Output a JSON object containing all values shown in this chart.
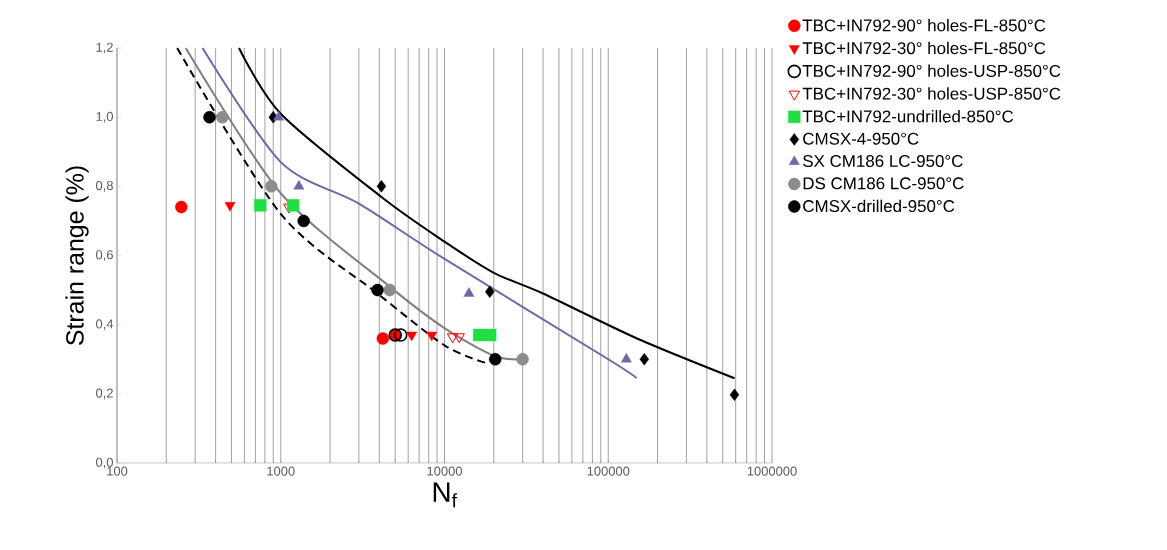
{
  "chart_data": {
    "type": "scatter",
    "xlabel": "N$_{f}$",
    "ylabel": "Strain range (%)",
    "log": "x",
    "grid": "x",
    "legend": "right",
    "xlim": [
      100,
      1000000
    ],
    "xticks": [
      100,
      1000,
      10000,
      100000,
      1000000
    ],
    "ylim": [
      0,
      1.2
    ],
    "yticks": [
      {
        "value": 0,
        "label": "0,0"
      },
      {
        "value": 0.2,
        "label": "0,2"
      },
      {
        "value": 0.4,
        "label": "0,4"
      },
      {
        "value": 0.6,
        "label": "0,6"
      },
      {
        "value": 0.8,
        "label": "0,8"
      },
      {
        "value": 1.0,
        "label": "1,0"
      },
      {
        "value": 1.2,
        "label": "1,2"
      }
    ],
    "series": [
      {
        "type": "line",
        "color": "#000000",
        "line_style": "solid",
        "x": [
          556,
          1000,
          4100,
          10000,
          20000,
          40000,
          150000,
          590000
        ],
        "values": [
          1.2,
          1.01,
          0.77,
          0.64,
          0.55,
          0.49,
          0.36,
          0.245
        ]
      },
      {
        "type": "line",
        "color": "#6a6aa6",
        "line_style": "solid",
        "x": [
          333,
          1000,
          3000,
          10000,
          100000,
          149000
        ],
        "values": [
          1.2,
          0.87,
          0.75,
          0.59,
          0.3,
          0.245
        ]
      },
      {
        "type": "line",
        "color": "#808080",
        "line_style": "solid",
        "x": [
          263,
          1000,
          4630,
          10000,
          20000,
          30000
        ],
        "values": [
          1.2,
          0.78,
          0.51,
          0.39,
          0.31,
          0.3
        ]
      },
      {
        "type": "line",
        "color": "#000000",
        "line_style": "dashed",
        "x": [
          233,
          1000,
          3900,
          10000,
          17700
        ],
        "values": [
          1.2,
          0.72,
          0.49,
          0.34,
          0.29
        ]
      },
      {
        "name": "TBC+IN792-90° holes-FL-850°C",
        "color": "#ff0000",
        "marker": "circle",
        "x": [
          247,
          4200,
          5000
        ],
        "values": [
          0.74,
          0.36,
          0.37
        ]
      },
      {
        "name": "TBC+IN792-30° holes-FL-850°C",
        "color": "#ff0000",
        "marker": "triangle-down",
        "x": [
          490,
          6300,
          8350
        ],
        "values": [
          0.745,
          0.37,
          0.37
        ]
      },
      {
        "name": "TBC+IN792-90° holes-USP-850°C",
        "color": "#000000",
        "marker": "circle-open",
        "x": [
          5000,
          5400
        ],
        "values": [
          0.37,
          0.37
        ]
      },
      {
        "name": "TBC+IN792-30° holes-USP-850°C",
        "color": "#ff0000",
        "marker": "triangle-down-open",
        "x": [
          1120,
          11200,
          12300
        ],
        "values": [
          0.74,
          0.365,
          0.365
        ]
      },
      {
        "name": "TBC+IN792-undrilled-850°C",
        "color": "#22dd44",
        "marker": "square",
        "x": [
          750,
          1190,
          16300,
          19000
        ],
        "values": [
          0.745,
          0.745,
          0.37,
          0.37
        ]
      },
      {
        "name": "CMSX-4-950°C",
        "color": "#000000",
        "marker": "diamond",
        "x": [
          900,
          4120,
          18900,
          166000,
          590000
        ],
        "values": [
          1.0,
          0.8,
          0.495,
          0.3,
          0.197
        ]
      },
      {
        "name": "SX CM186 LC-950°C",
        "color": "#6a6aa6",
        "marker": "triangle",
        "x": [
          970,
          1290,
          14100,
          129000
        ],
        "values": [
          1.0,
          0.8,
          0.49,
          0.3
        ]
      },
      {
        "name": "DS CM186 LC-950°C",
        "color": "#8c8c8c",
        "marker": "circle",
        "x": [
          440,
          875,
          4630,
          30000
        ],
        "values": [
          1.0,
          0.8,
          0.5,
          0.3
        ]
      },
      {
        "name": "CMSX-drilled-950°C",
        "color": "#000000",
        "marker": "circle",
        "x": [
          367,
          1380,
          3900,
          20400
        ],
        "values": [
          1.0,
          0.7,
          0.5,
          0.3
        ]
      }
    ]
  }
}
